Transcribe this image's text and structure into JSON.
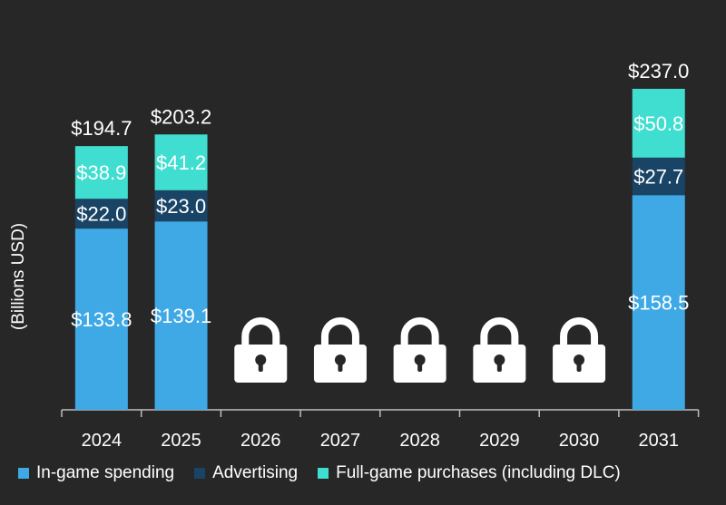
{
  "chart_data": {
    "type": "bar",
    "stacked": true,
    "ylabel": "(Billions USD)",
    "categories": [
      "2024",
      "2025",
      "2026",
      "2027",
      "2028",
      "2029",
      "2030",
      "2031"
    ],
    "series": [
      {
        "name": "In-game spending",
        "color": "#3fa9e6",
        "values": [
          133.8,
          139.1,
          null,
          null,
          null,
          null,
          null,
          158.5
        ],
        "labels": [
          "$133.8",
          "$139.1",
          null,
          null,
          null,
          null,
          null,
          "$158.5"
        ]
      },
      {
        "name": "Advertising",
        "color": "#1a4466",
        "values": [
          22.0,
          23.0,
          null,
          null,
          null,
          null,
          null,
          27.7
        ],
        "labels": [
          "$22.0",
          "$23.0",
          null,
          null,
          null,
          null,
          null,
          "$27.7"
        ]
      },
      {
        "name": "Full-game purchases (including DLC)",
        "color": "#40ded0",
        "values": [
          38.9,
          41.2,
          null,
          null,
          null,
          null,
          null,
          50.8
        ],
        "labels": [
          "$38.9",
          "$41.2",
          null,
          null,
          null,
          null,
          null,
          "$50.8"
        ]
      }
    ],
    "totals": [
      194.7,
      203.2,
      null,
      null,
      null,
      null,
      null,
      237.0
    ],
    "total_labels": [
      "$194.7",
      "$203.2",
      null,
      null,
      null,
      null,
      null,
      "$237.0"
    ],
    "locked_categories": [
      "2026",
      "2027",
      "2028",
      "2029",
      "2030"
    ],
    "locked_icon": "lock-icon",
    "ylim": [
      0,
      245
    ],
    "grid": false,
    "legend_position": "bottom"
  }
}
